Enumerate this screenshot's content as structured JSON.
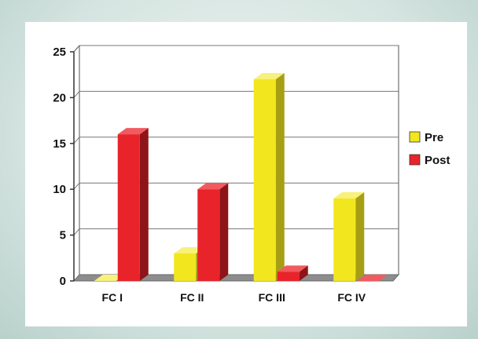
{
  "chart_data": {
    "type": "bar",
    "categories": [
      "FC I",
      "FC II",
      "FC III",
      "FC IV"
    ],
    "series": [
      {
        "name": "Pre",
        "values": [
          0,
          3,
          22,
          9
        ],
        "color": "#f2e61e",
        "side": "#a79f13",
        "top": "#f8f17a"
      },
      {
        "name": "Post",
        "values": [
          16,
          10,
          1,
          0
        ],
        "color": "#e8232a",
        "side": "#8e1418",
        "top": "#f15a5e"
      }
    ],
    "ylim": [
      0,
      25
    ],
    "yticks": [
      0,
      5,
      10,
      15,
      20,
      25
    ],
    "grid": true,
    "legend": "right",
    "title": "",
    "xlabel": "",
    "ylabel": ""
  }
}
